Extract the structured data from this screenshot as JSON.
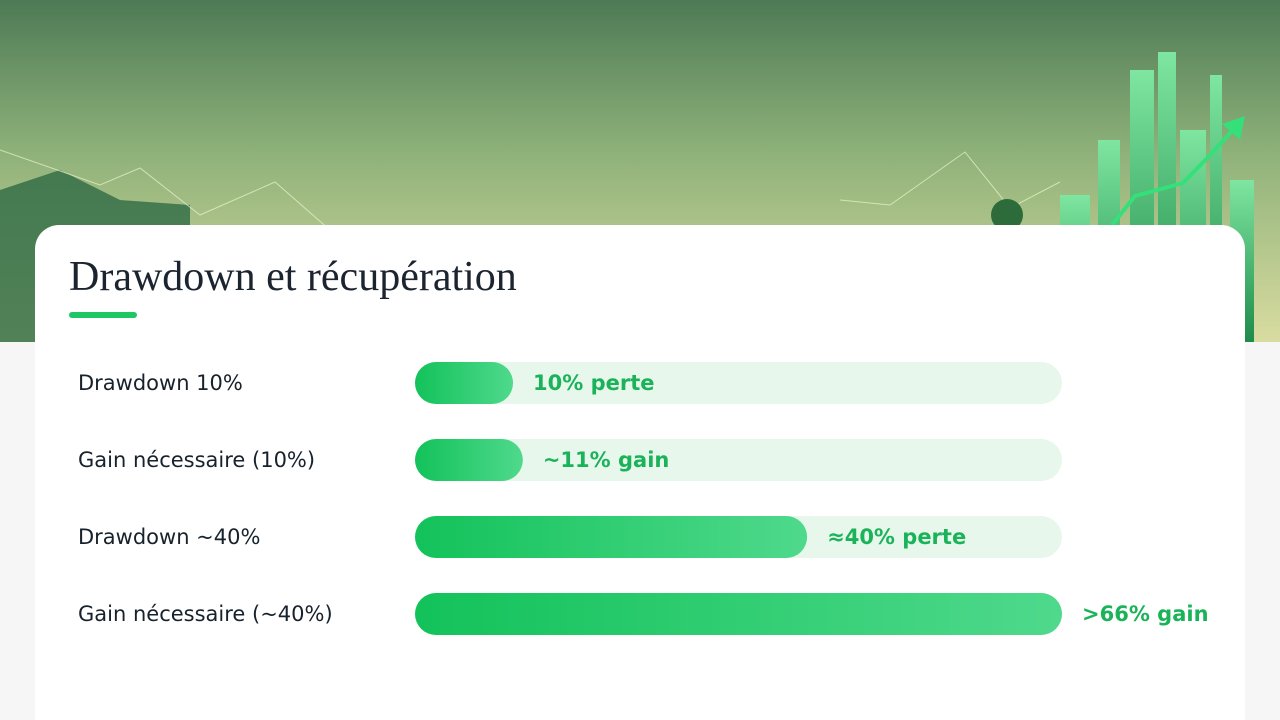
{
  "chart_data": {
    "type": "bar",
    "orientation": "horizontal",
    "title": "Drawdown et récupération",
    "categories": [
      "Drawdown 10%",
      "Gain nécessaire (10%)",
      "Drawdown ~40%",
      "Gain nécessaire (~40%)"
    ],
    "values": [
      10,
      11,
      40,
      66
    ],
    "value_labels": [
      "10% perte",
      "~11% gain",
      "≈40% perte",
      ">66% gain"
    ],
    "color": "#22c768",
    "xlim": [
      0,
      66
    ]
  }
}
